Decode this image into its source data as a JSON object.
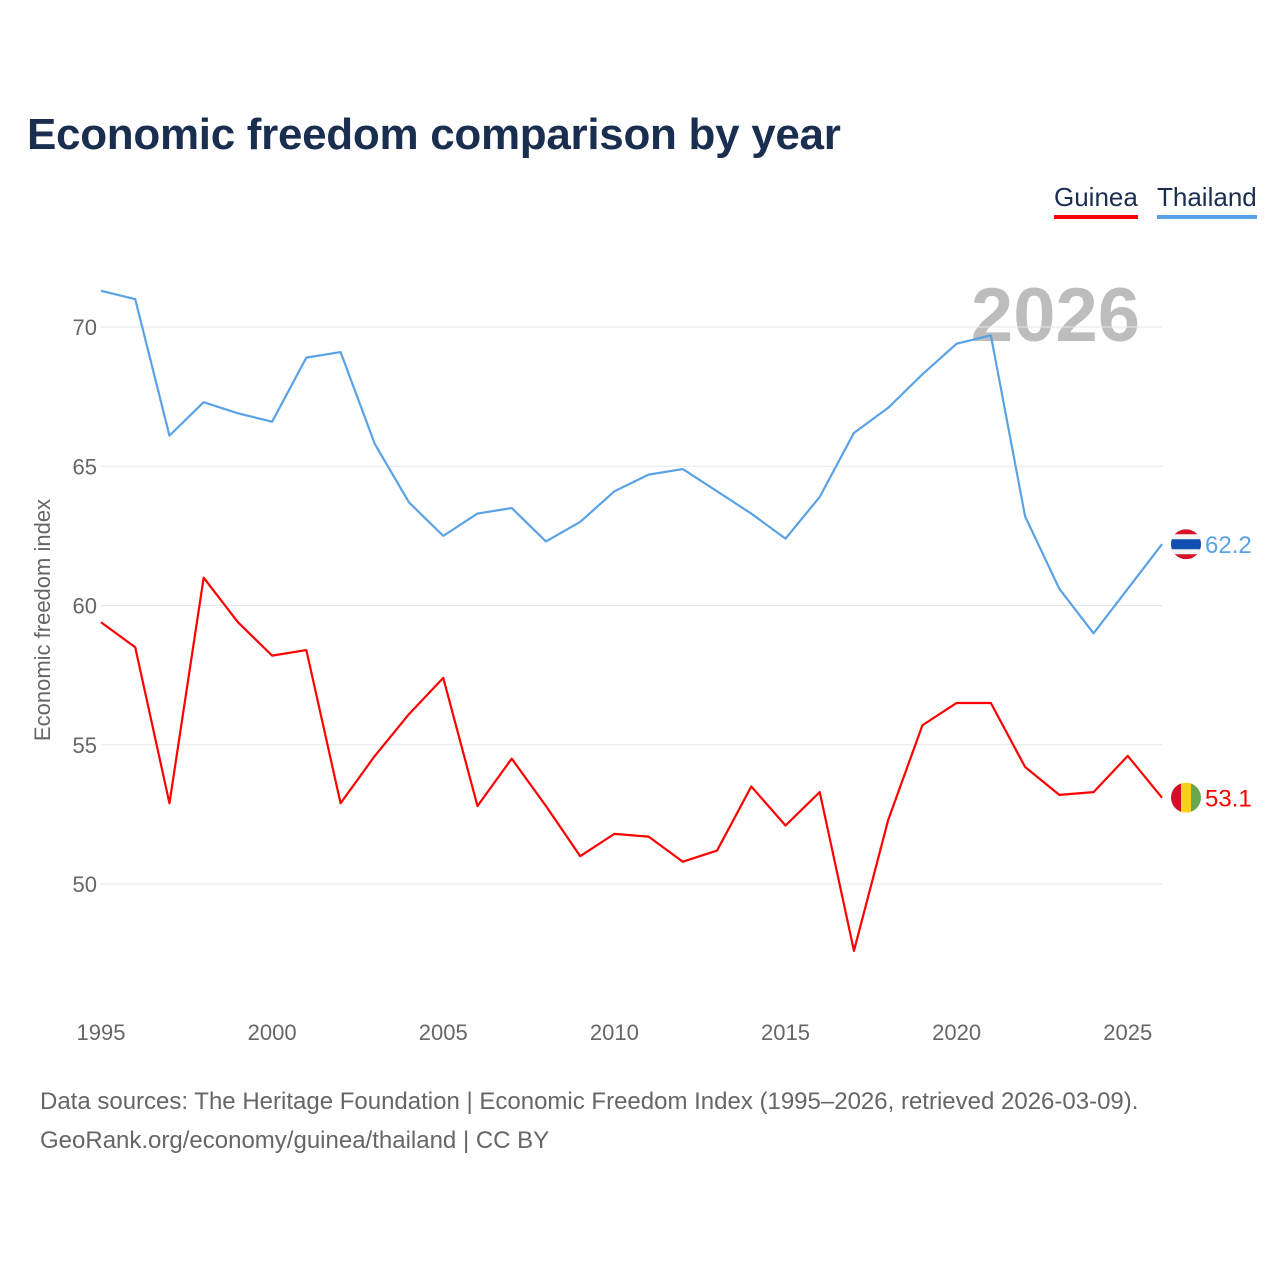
{
  "chart_data": {
    "type": "line",
    "title": "Economic freedom comparison by year",
    "xlabel": "",
    "ylabel": "Economic freedom index",
    "year_watermark": "2026",
    "x": [
      1995,
      1996,
      1997,
      1998,
      1999,
      2000,
      2001,
      2002,
      2003,
      2004,
      2005,
      2006,
      2007,
      2008,
      2009,
      2010,
      2011,
      2012,
      2013,
      2014,
      2015,
      2016,
      2017,
      2018,
      2019,
      2020,
      2021,
      2022,
      2023,
      2024,
      2025,
      2026
    ],
    "xlim": [
      1995,
      2026
    ],
    "ylim": [
      45.5,
      72
    ],
    "xticks": [
      1995,
      2000,
      2005,
      2010,
      2015,
      2020,
      2025
    ],
    "yticks": [
      50,
      55,
      60,
      65,
      70
    ],
    "grid": true,
    "legend_position": "top-right",
    "series": [
      {
        "name": "Guinea",
        "color": "#ff0000",
        "end_label": "53.1",
        "values": [
          59.4,
          58.5,
          52.9,
          61.0,
          59.4,
          58.2,
          58.4,
          52.9,
          54.6,
          56.1,
          57.4,
          52.8,
          54.5,
          52.8,
          51.0,
          51.8,
          51.7,
          50.8,
          51.2,
          53.5,
          52.1,
          53.3,
          47.6,
          52.3,
          55.7,
          56.5,
          56.5,
          54.2,
          53.2,
          53.3,
          54.6,
          53.1
        ]
      },
      {
        "name": "Thailand",
        "color": "#5aa2e6",
        "end_label": "62.2",
        "values": [
          71.3,
          71.0,
          66.1,
          67.3,
          66.9,
          66.6,
          68.9,
          69.1,
          65.8,
          63.7,
          62.5,
          63.3,
          63.5,
          62.3,
          63.0,
          64.1,
          64.7,
          64.9,
          64.1,
          63.3,
          62.4,
          63.9,
          66.2,
          67.1,
          68.3,
          69.4,
          69.7,
          63.2,
          60.6,
          59.0,
          60.6,
          62.2
        ]
      }
    ]
  },
  "footer": {
    "line1": "Data sources: The Heritage Foundation | Economic Freedom Index (1995–2026, retrieved 2026-03-09).",
    "line2": "GeoRank.org/economy/guinea/thailand | CC BY"
  }
}
